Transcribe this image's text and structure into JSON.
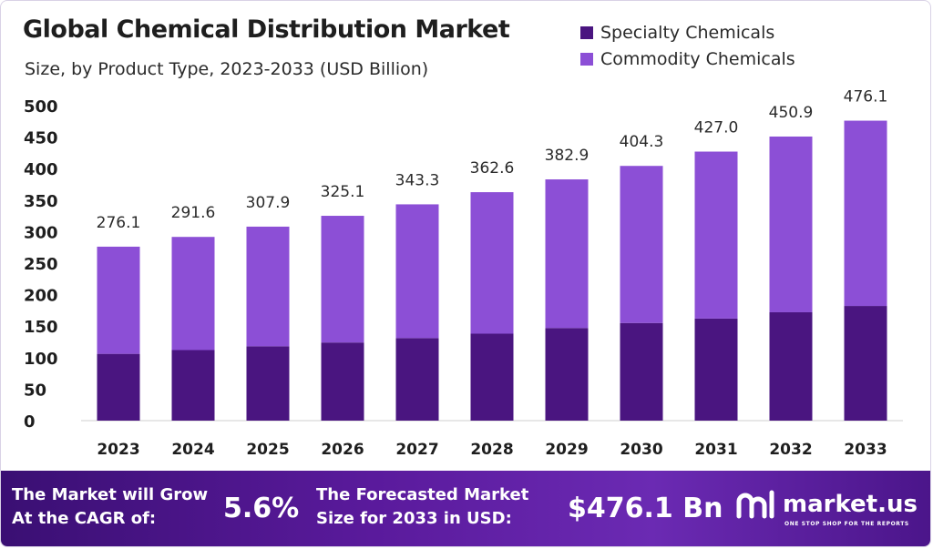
{
  "title": "Global Chemical Distribution Market",
  "subtitle": "Size, by Product Type, 2023-2033 (USD Billion)",
  "chart_data": {
    "type": "bar",
    "stacked": true,
    "categories": [
      "2023",
      "2024",
      "2025",
      "2026",
      "2027",
      "2028",
      "2029",
      "2030",
      "2031",
      "2032",
      "2033"
    ],
    "series": [
      {
        "name": "Specialty Chemicals",
        "color": "#4a1580",
        "values": [
          106,
          112,
          118,
          124,
          131,
          138,
          147,
          155,
          162,
          172,
          182
        ]
      },
      {
        "name": "Commodity Chemicals",
        "color": "#8c4fd6",
        "values": [
          170.1,
          179.6,
          189.9,
          201.1,
          212.3,
          224.6,
          235.9,
          249.3,
          265.0,
          278.9,
          294.1
        ]
      }
    ],
    "totals": [
      "276.1",
      "291.6",
      "307.9",
      "325.1",
      "343.3",
      "362.6",
      "382.9",
      "404.3",
      "427.0",
      "450.9",
      "476.1"
    ],
    "yticks": [
      0,
      50,
      100,
      150,
      200,
      250,
      300,
      350,
      400,
      450,
      500
    ],
    "ylim": [
      0,
      500
    ],
    "grid": false,
    "legend_position": "top-right"
  },
  "footer": {
    "grow_line1": "The Market will Grow",
    "grow_line2": "At the CAGR of:",
    "cagr": "5.6%",
    "forecast_line1": "The Forecasted Market",
    "forecast_line2": "Size for 2033 in USD:",
    "forecast_value": "$476.1 Bn",
    "brand": "market.us",
    "tagline": "ONE STOP SHOP FOR THE REPORTS",
    "logo_icon": "market-us-logo-icon"
  }
}
